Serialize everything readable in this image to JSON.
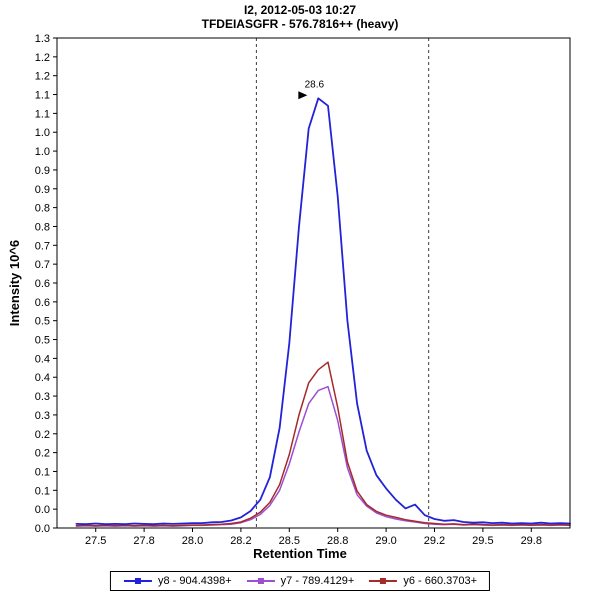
{
  "chart_data": {
    "type": "line",
    "title": "I2, 2012-05-03 10:27",
    "subtitle": "TFDEIASGFR - 576.7816++ (heavy)",
    "xlabel": "Retention Time",
    "ylabel": "Intensity 10^6",
    "xlim": [
      27.3,
      29.95
    ],
    "ylim": [
      0,
      1.3
    ],
    "grid": false,
    "legend_position": "bottom",
    "x_ticks": {
      "values": [
        27.5,
        27.75,
        28.0,
        28.25,
        28.5,
        28.75,
        29.0,
        29.25,
        29.5,
        29.75
      ],
      "labels": [
        "27.5",
        "27.8",
        "28.0",
        "28.2",
        "28.5",
        "28.8",
        "29.0",
        "29.2",
        "29.5",
        "29.8"
      ]
    },
    "y_ticks": {
      "values": [
        0.0,
        0.05,
        0.1,
        0.15,
        0.2,
        0.25,
        0.3,
        0.35,
        0.4,
        0.45,
        0.5,
        0.55,
        0.6,
        0.65,
        0.7,
        0.75,
        0.8,
        0.85,
        0.9,
        0.95,
        1.0,
        1.05,
        1.1,
        1.15,
        1.2,
        1.25,
        1.3
      ],
      "labels": [
        "0.0",
        "0.0",
        "0.1",
        "0.1",
        "0.2",
        "0.2",
        "0.3",
        "0.3",
        "0.4",
        "0.4",
        "0.5",
        "0.5",
        "0.6",
        "0.6",
        "0.7",
        "0.7",
        "0.8",
        "0.8",
        "0.9",
        "0.9",
        "1.0",
        "1.0",
        "1.1",
        "1.1",
        "1.2",
        "1.2",
        "1.3"
      ]
    },
    "x": [
      27.4,
      27.45,
      27.5,
      27.55,
      27.6,
      27.65,
      27.7,
      27.75,
      27.8,
      27.85,
      27.9,
      27.95,
      28.0,
      28.05,
      28.1,
      28.15,
      28.2,
      28.25,
      28.3,
      28.35,
      28.4,
      28.45,
      28.5,
      28.55,
      28.6,
      28.65,
      28.7,
      28.75,
      28.8,
      28.85,
      28.9,
      28.95,
      29.0,
      29.05,
      29.1,
      29.15,
      29.2,
      29.25,
      29.3,
      29.35,
      29.4,
      29.45,
      29.5,
      29.55,
      29.6,
      29.65,
      29.7,
      29.75,
      29.8,
      29.85,
      29.9,
      29.95
    ],
    "series": [
      {
        "id": "y8",
        "label": "y8 - 904.4398+",
        "color": "#2222D8",
        "values": [
          0.011,
          0.01,
          0.012,
          0.01,
          0.011,
          0.01,
          0.012,
          0.011,
          0.01,
          0.012,
          0.011,
          0.012,
          0.013,
          0.013,
          0.015,
          0.016,
          0.02,
          0.028,
          0.045,
          0.075,
          0.135,
          0.265,
          0.49,
          0.8,
          1.06,
          1.14,
          1.12,
          0.88,
          0.55,
          0.33,
          0.205,
          0.14,
          0.105,
          0.075,
          0.052,
          0.062,
          0.034,
          0.024,
          0.019,
          0.021,
          0.016,
          0.014,
          0.015,
          0.013,
          0.014,
          0.012,
          0.013,
          0.012,
          0.014,
          0.012,
          0.013,
          0.012
        ]
      },
      {
        "id": "y7",
        "label": "y7 - 789.4129+",
        "color": "#9C4FD2",
        "values": [
          0.005,
          0.006,
          0.005,
          0.006,
          0.005,
          0.006,
          0.005,
          0.006,
          0.005,
          0.006,
          0.005,
          0.006,
          0.007,
          0.007,
          0.008,
          0.009,
          0.01,
          0.014,
          0.022,
          0.036,
          0.06,
          0.1,
          0.17,
          0.255,
          0.33,
          0.365,
          0.375,
          0.285,
          0.16,
          0.088,
          0.058,
          0.04,
          0.03,
          0.024,
          0.019,
          0.016,
          0.012,
          0.01,
          0.009,
          0.01,
          0.008,
          0.009,
          0.008,
          0.007,
          0.008,
          0.007,
          0.008,
          0.007,
          0.008,
          0.007,
          0.008,
          0.007
        ]
      },
      {
        "id": "y6",
        "label": "y6 - 660.3703+",
        "color": "#A52A2A",
        "values": [
          0.006,
          0.007,
          0.006,
          0.007,
          0.006,
          0.007,
          0.006,
          0.007,
          0.006,
          0.007,
          0.006,
          0.007,
          0.008,
          0.008,
          0.009,
          0.01,
          0.012,
          0.016,
          0.026,
          0.042,
          0.068,
          0.115,
          0.195,
          0.3,
          0.385,
          0.42,
          0.44,
          0.32,
          0.175,
          0.098,
          0.062,
          0.044,
          0.034,
          0.028,
          0.022,
          0.018,
          0.014,
          0.012,
          0.01,
          0.011,
          0.009,
          0.01,
          0.009,
          0.008,
          0.009,
          0.008,
          0.009,
          0.008,
          0.009,
          0.008,
          0.009,
          0.008
        ]
      }
    ],
    "peak_annotation": {
      "label": "28.6",
      "x": 28.65,
      "y": 1.14,
      "color": "#2222D8"
    },
    "integration_boundaries": [
      28.33,
      29.22
    ]
  },
  "colors": {
    "axis": "#000000",
    "boundary": "#3C3C3C",
    "background": "#FFFFFF"
  }
}
